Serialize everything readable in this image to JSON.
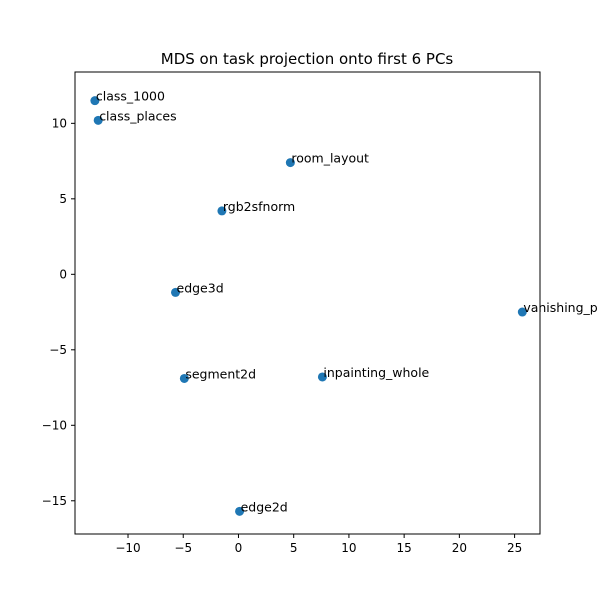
{
  "chart_data": {
    "type": "scatter",
    "title": "MDS on task projection onto first 6 PCs",
    "xlabel": "",
    "ylabel": "",
    "xlim": [
      -14.8,
      27.3
    ],
    "ylim": [
      -17.2,
      13.4
    ],
    "xticks": [
      -10,
      -5,
      0,
      5,
      10,
      15,
      20,
      25
    ],
    "yticks": [
      -15,
      -10,
      -5,
      0,
      5,
      10
    ],
    "grid": false,
    "marker_color": "#1f77b4",
    "points": [
      {
        "label": "class_1000",
        "x": -13.0,
        "y": 11.5
      },
      {
        "label": "class_places",
        "x": -12.7,
        "y": 10.2
      },
      {
        "label": "room_layout",
        "x": 4.7,
        "y": 7.4
      },
      {
        "label": "rgb2sfnorm",
        "x": -1.5,
        "y": 4.2
      },
      {
        "label": "edge3d",
        "x": -5.7,
        "y": -1.2
      },
      {
        "label": "vanishing_p",
        "x": 25.7,
        "y": -2.5
      },
      {
        "label": "segment2d",
        "x": -4.9,
        "y": -6.9
      },
      {
        "label": "inpainting_whole",
        "x": 7.6,
        "y": -6.8
      },
      {
        "label": "edge2d",
        "x": 0.1,
        "y": -15.7
      }
    ]
  }
}
